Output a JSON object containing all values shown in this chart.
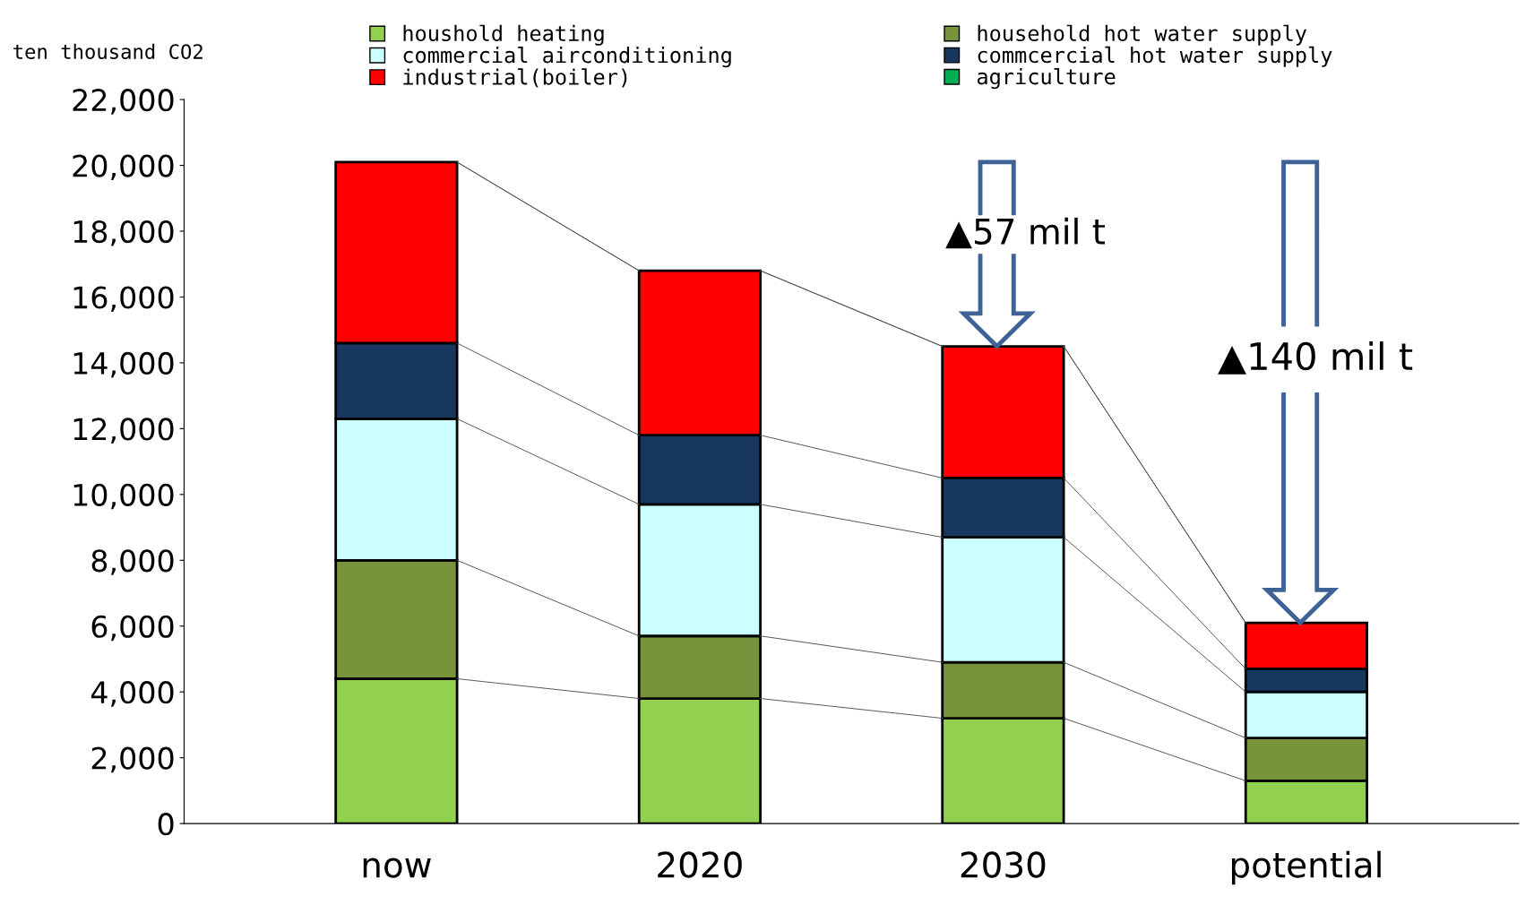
{
  "chart_data": {
    "type": "bar",
    "stacked": true,
    "ylabel": "ten thousand CO2",
    "categories": [
      "now",
      "2020",
      "2030",
      "potential"
    ],
    "series": [
      {
        "name": "houshold heating",
        "color": "#92d050",
        "values": [
          4400,
          3800,
          3200,
          1300
        ]
      },
      {
        "name": "household hot water supply",
        "color": "#77933c",
        "values": [
          3600,
          1900,
          1700,
          1300
        ]
      },
      {
        "name": "commercial airconditioning",
        "color": "#ccffff",
        "values": [
          4300,
          4000,
          3800,
          1400
        ]
      },
      {
        "name": "commcercial hot water supply",
        "color": "#17375e",
        "values": [
          2300,
          2100,
          1800,
          700
        ]
      },
      {
        "name": "industrial(boiler)",
        "color": "#ff0000",
        "values": [
          5500,
          5000,
          4000,
          1400
        ]
      },
      {
        "name": "agriculture",
        "color": "#00b050",
        "values": [
          0,
          0,
          0,
          0
        ]
      }
    ],
    "ylim": [
      0,
      22000
    ],
    "yticks": [
      0,
      {
        "value": 2000,
        "label": "2,000"
      },
      {
        "value": 4000,
        "label": "4,000"
      },
      {
        "value": 6000,
        "label": "6,000"
      },
      {
        "value": 8000,
        "label": "8,000"
      },
      {
        "value": 10000,
        "label": "10,000"
      },
      {
        "value": 12000,
        "label": "12,000"
      },
      {
        "value": 14000,
        "label": "14,000"
      },
      {
        "value": 16000,
        "label": "16,000"
      },
      {
        "value": 18000,
        "label": "18,000"
      },
      {
        "value": 20000,
        "label": "20,000"
      },
      {
        "value": 22000,
        "label": "22,000"
      }
    ],
    "grid": false,
    "legend": "top",
    "annotations": [
      "▲57 mil t",
      "▲140 mil t"
    ]
  }
}
